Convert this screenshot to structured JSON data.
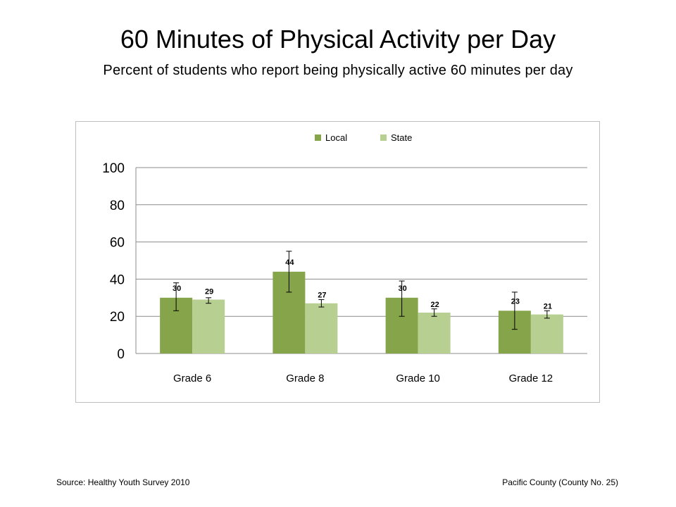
{
  "header": {
    "title": "60 Minutes of Physical Activity per Day",
    "subtitle": "Percent of students who report being physically active 60 minutes per day"
  },
  "footer": {
    "source": "Source: Healthy Youth Survey 2010",
    "county": "Pacific County (County No. 25)"
  },
  "chart_data": {
    "type": "bar",
    "categories": [
      "Grade 6",
      "Grade 8",
      "Grade 10",
      "Grade 12"
    ],
    "series": [
      {
        "name": "Local",
        "color": "#86A44A",
        "values": [
          30,
          44,
          30,
          23
        ],
        "error_low": [
          23,
          33,
          20,
          13
        ],
        "error_high": [
          38,
          55,
          39,
          33
        ]
      },
      {
        "name": "State",
        "color": "#B8CF92",
        "values": [
          29,
          27,
          22,
          21
        ],
        "error_low": [
          27,
          25,
          20,
          19
        ],
        "error_high": [
          30,
          29,
          24,
          23
        ]
      }
    ],
    "ylim": [
      0,
      100
    ],
    "yticks": [
      0,
      20,
      40,
      60,
      80,
      100
    ],
    "legend_position": "top",
    "grid": true,
    "error_bars": true
  }
}
